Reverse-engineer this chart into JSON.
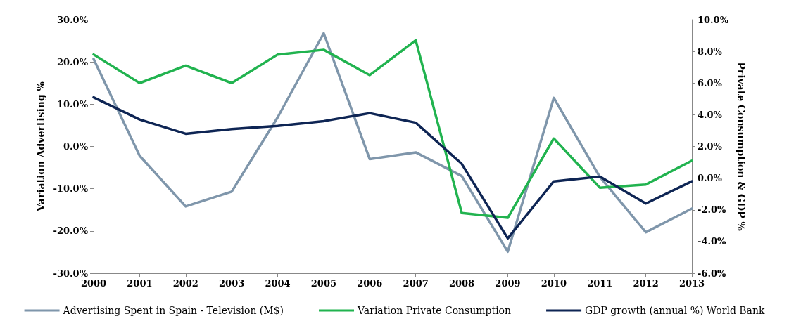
{
  "chart_data": {
    "type": "line",
    "categories": [
      "2000",
      "2001",
      "2002",
      "2003",
      "2004",
      "2005",
      "2006",
      "2007",
      "2008",
      "2009",
      "2010",
      "2011",
      "2012",
      "2013"
    ],
    "ylabel": "Variation Advertising %",
    "y2label": "Private Consumption & GDP %",
    "ylim": [
      -30,
      30
    ],
    "yticks": [
      {
        "value": -30,
        "label": "-30.0%"
      },
      {
        "value": -20,
        "label": "-20.0%"
      },
      {
        "value": -10,
        "label": "-10.0%"
      },
      {
        "value": 0,
        "label": "0.0%"
      },
      {
        "value": 10,
        "label": "10.0%"
      },
      {
        "value": 20,
        "label": "20.0%"
      },
      {
        "value": 30,
        "label": "30.0%"
      }
    ],
    "y2lim": [
      -6,
      10
    ],
    "y2ticks": [
      {
        "value": -6,
        "label": "-6.0%"
      },
      {
        "value": -4,
        "label": "-4.0%"
      },
      {
        "value": -2,
        "label": "-2.0%"
      },
      {
        "value": 0,
        "label": "0.0%"
      },
      {
        "value": 2,
        "label": "2.0%"
      },
      {
        "value": 4,
        "label": "4.0%"
      },
      {
        "value": 6,
        "label": "6.0%"
      },
      {
        "value": 8,
        "label": "8.0%"
      },
      {
        "value": 10,
        "label": "10.0%"
      }
    ],
    "series": [
      {
        "name": "Advertising Spent in Spain - Television (M$)",
        "color": "#7f96ab",
        "values": [
          20.7,
          -2.2,
          -14.2,
          -10.7,
          6.9,
          26.8,
          -3.0,
          -1.4,
          -7.0,
          -24.9,
          11.5,
          -7.2,
          -20.3,
          -14.7
        ]
      },
      {
        "name": "Variation Private Consumption",
        "color": "#21b34f",
        "axis": "y2",
        "values": [
          7.8,
          6.0,
          7.1,
          6.0,
          7.8,
          8.1,
          6.5,
          8.7,
          -2.2,
          -2.5,
          2.5,
          -0.6,
          -0.4,
          1.1
        ]
      },
      {
        "name": "GDP growth (annual %) World Bank",
        "color": "#0e2554",
        "axis": "y2",
        "values": [
          5.1,
          3.7,
          2.8,
          3.1,
          3.3,
          3.6,
          4.1,
          3.5,
          0.9,
          -3.8,
          -0.2,
          0.1,
          -1.6,
          -0.2
        ]
      }
    ],
    "legend": "bottom",
    "grid": false,
    "marker": "none"
  }
}
